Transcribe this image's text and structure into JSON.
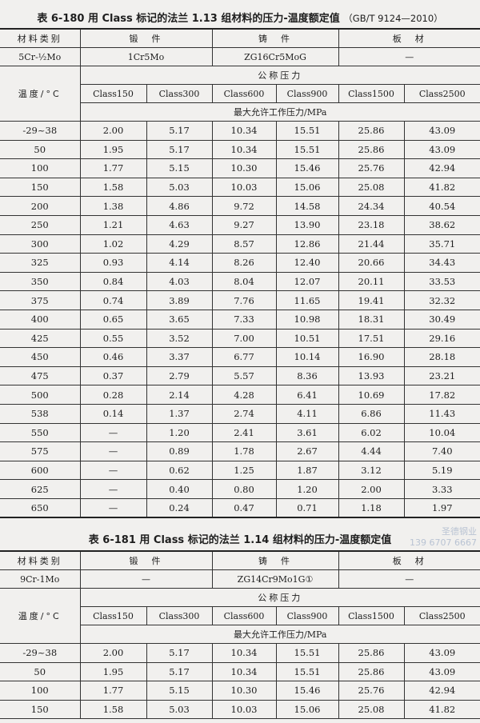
{
  "table1": {
    "title": "表 6-180   用 Class 标记的法兰 1.13 组材料的压力-温度额定值",
    "standard": "（GB/T 9124—2010）",
    "material_category_label": "材料类别",
    "forging_label": "锻　件",
    "casting_label": "铸　件",
    "plate_label": "板　材",
    "material_group": "5Cr-½Mo",
    "forging_material": "1Cr5Mo",
    "casting_material": "ZG16Cr5MoG",
    "plate_material": "—",
    "nominal_pressure_label": "公称压力",
    "temperature_label": "温度/°C",
    "classes": [
      "Class150",
      "Class300",
      "Class600",
      "Class900",
      "Class1500",
      "Class2500"
    ],
    "max_pressure_label": "最大允许工作压力/MPa",
    "rows": [
      [
        "-29~38",
        "2.00",
        "5.17",
        "10.34",
        "15.51",
        "25.86",
        "43.09"
      ],
      [
        "50",
        "1.95",
        "5.17",
        "10.34",
        "15.51",
        "25.86",
        "43.09"
      ],
      [
        "100",
        "1.77",
        "5.15",
        "10.30",
        "15.46",
        "25.76",
        "42.94"
      ],
      [
        "150",
        "1.58",
        "5.03",
        "10.03",
        "15.06",
        "25.08",
        "41.82"
      ],
      [
        "200",
        "1.38",
        "4.86",
        "9.72",
        "14.58",
        "24.34",
        "40.54"
      ],
      [
        "250",
        "1.21",
        "4.63",
        "9.27",
        "13.90",
        "23.18",
        "38.62"
      ],
      [
        "300",
        "1.02",
        "4.29",
        "8.57",
        "12.86",
        "21.44",
        "35.71"
      ],
      [
        "325",
        "0.93",
        "4.14",
        "8.26",
        "12.40",
        "20.66",
        "34.43"
      ],
      [
        "350",
        "0.84",
        "4.03",
        "8.04",
        "12.07",
        "20.11",
        "33.53"
      ],
      [
        "375",
        "0.74",
        "3.89",
        "7.76",
        "11.65",
        "19.41",
        "32.32"
      ],
      [
        "400",
        "0.65",
        "3.65",
        "7.33",
        "10.98",
        "18.31",
        "30.49"
      ],
      [
        "425",
        "0.55",
        "3.52",
        "7.00",
        "10.51",
        "17.51",
        "29.16"
      ],
      [
        "450",
        "0.46",
        "3.37",
        "6.77",
        "10.14",
        "16.90",
        "28.18"
      ],
      [
        "475",
        "0.37",
        "2.79",
        "5.57",
        "8.36",
        "13.93",
        "23.21"
      ],
      [
        "500",
        "0.28",
        "2.14",
        "4.28",
        "6.41",
        "10.69",
        "17.82"
      ],
      [
        "538",
        "0.14",
        "1.37",
        "2.74",
        "4.11",
        "6.86",
        "11.43"
      ],
      [
        "550",
        "—",
        "1.20",
        "2.41",
        "3.61",
        "6.02",
        "10.04"
      ],
      [
        "575",
        "—",
        "0.89",
        "1.78",
        "2.67",
        "4.44",
        "7.40"
      ],
      [
        "600",
        "—",
        "0.62",
        "1.25",
        "1.87",
        "3.12",
        "5.19"
      ],
      [
        "625",
        "—",
        "0.40",
        "0.80",
        "1.20",
        "2.00",
        "3.33"
      ],
      [
        "650",
        "—",
        "0.24",
        "0.47",
        "0.71",
        "1.18",
        "1.97"
      ]
    ]
  },
  "table2": {
    "title": "表 6-181   用 Class 标记的法兰 1.14 组材料的压力-温度额定值",
    "material_category_label": "材料类别",
    "forging_label": "锻　件",
    "casting_label": "铸　件",
    "plate_label": "板　材",
    "material_group": "9Cr-1Mo",
    "forging_material": "—",
    "casting_material": "ZG14Cr9Mo1G①",
    "plate_material": "—",
    "nominal_pressure_label": "公称压力",
    "temperature_label": "温度/°C",
    "classes": [
      "Class150",
      "Class300",
      "Class600",
      "Class900",
      "Class1500",
      "Class2500"
    ],
    "max_pressure_label": "最大允许工作压力/MPa",
    "rows": [
      [
        "-29~38",
        "2.00",
        "5.17",
        "10.34",
        "15.51",
        "25.86",
        "43.09"
      ],
      [
        "50",
        "1.95",
        "5.17",
        "10.34",
        "15.51",
        "25.86",
        "43.09"
      ],
      [
        "100",
        "1.77",
        "5.15",
        "10.30",
        "15.46",
        "25.76",
        "42.94"
      ],
      [
        "150",
        "1.58",
        "5.03",
        "10.03",
        "15.06",
        "25.08",
        "41.82"
      ]
    ]
  },
  "watermark": {
    "line1": "圣德钢业",
    "line2": "139 6707 6667"
  }
}
